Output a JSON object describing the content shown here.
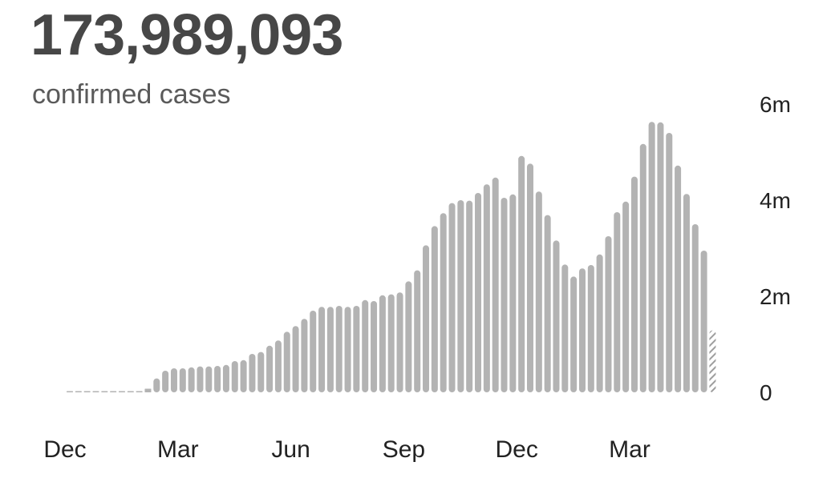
{
  "headline": {
    "total": "173,989,093",
    "subtitle": "confirmed cases"
  },
  "colors": {
    "bar": "#b3b3b3",
    "partial_bar_stripe": "#9e9e9e",
    "text": "#222222",
    "headline": "#474747"
  },
  "chart_data": {
    "type": "bar",
    "title": "173,989,093",
    "subtitle": "confirmed cases",
    "xlabel": "",
    "ylabel": "",
    "ylim": [
      0,
      6000000
    ],
    "yticks": [
      {
        "value": 0,
        "label": "0"
      },
      {
        "value": 2000000,
        "label": "2m"
      },
      {
        "value": 4000000,
        "label": "4m"
      },
      {
        "value": 6000000,
        "label": "6m"
      }
    ],
    "xticks": [
      {
        "index": 0,
        "label": "Dec"
      },
      {
        "index": 13,
        "label": "Mar"
      },
      {
        "index": 26,
        "label": "Jun"
      },
      {
        "index": 39,
        "label": "Sep"
      },
      {
        "index": 52,
        "label": "Dec"
      },
      {
        "index": 65,
        "label": "Mar"
      }
    ],
    "period": "weekly",
    "grid": false,
    "legend": "none",
    "partial_last_bar": true,
    "values": [
      0,
      500,
      1000,
      2000,
      3000,
      4000,
      5000,
      8000,
      20000,
      75000,
      290000,
      450000,
      500000,
      500000,
      520000,
      540000,
      540000,
      550000,
      570000,
      650000,
      670000,
      800000,
      840000,
      970000,
      1080000,
      1260000,
      1380000,
      1530000,
      1700000,
      1780000,
      1780000,
      1800000,
      1780000,
      1800000,
      1920000,
      1900000,
      2020000,
      2040000,
      2080000,
      2310000,
      2540000,
      3060000,
      3460000,
      3730000,
      3940000,
      4000000,
      3990000,
      4150000,
      4330000,
      4470000,
      4050000,
      4120000,
      4920000,
      4760000,
      4180000,
      3690000,
      3160000,
      2660000,
      2410000,
      2580000,
      2650000,
      2870000,
      3250000,
      3750000,
      3970000,
      4490000,
      5170000,
      5630000,
      5620000,
      5400000,
      4720000,
      4130000,
      3500000,
      2950000,
      1290000
    ]
  }
}
